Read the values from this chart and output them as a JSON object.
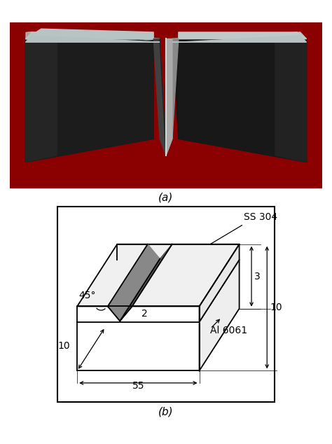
{
  "fig_bg": "#ffffff",
  "label_a": "(a)",
  "label_b": "(b)",
  "line_color": "#000000",
  "dim_55": "55",
  "dim_10_bottom": "10",
  "dim_10_right": "10",
  "dim_3": "3",
  "dim_2": "2",
  "dim_45": "45°",
  "label_ss304": "SS 304",
  "label_al6061": "Al 6061",
  "label_fontsize": 11,
  "dim_fontsize": 10,
  "photo_red_bg": "#8B0000",
  "photo_silver_top": "#b8c4c4",
  "photo_dark_body": "#1a1a1a",
  "photo_notch_bright": "#c8d0d0",
  "photo_notch_dark": "#0a0a0a"
}
